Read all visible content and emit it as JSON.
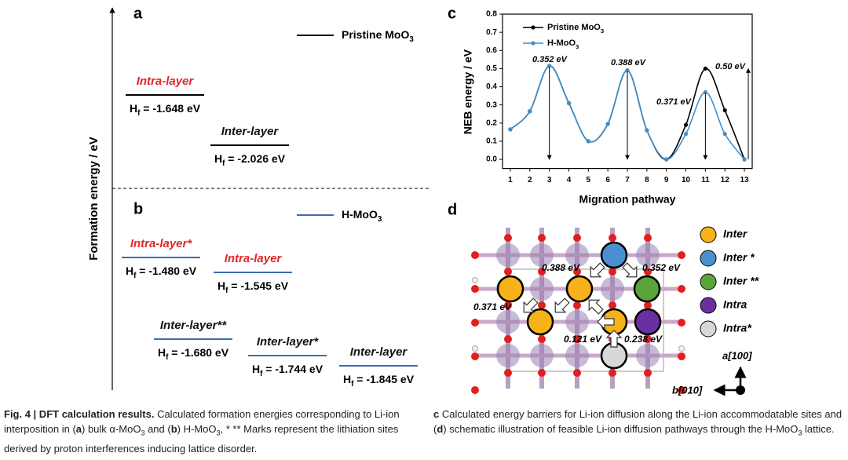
{
  "panel_a": {
    "label": "a",
    "axis_label": "Formation energy / eV",
    "legend": [
      "Pristine MoO",
      {
        "sub": "3"
      }
    ],
    "legend_color": "#000000",
    "levels": [
      {
        "name": "Intra-layer",
        "color": "#e0262a",
        "label": [
          "H",
          {
            "sub": "f"
          },
          " = -1.648 eV"
        ]
      },
      {
        "name": "Inter-layer",
        "color": "#111111",
        "label": [
          "H",
          {
            "sub": "f"
          },
          " = -2.026 eV"
        ]
      }
    ]
  },
  "panel_b": {
    "label": "b",
    "legend": [
      "H-MoO",
      {
        "sub": "3"
      }
    ],
    "legend_color": "#3b6db3",
    "levels": [
      {
        "name": "Intra-layer*",
        "color": "#e0262a",
        "label": [
          "H",
          {
            "sub": "f"
          },
          " = -1.480 eV"
        ]
      },
      {
        "name": "Intra-layer",
        "color": "#e0262a",
        "label": [
          "H",
          {
            "sub": "f"
          },
          " = -1.545 eV"
        ]
      },
      {
        "name": "Inter-layer**",
        "color": "#111111",
        "label": [
          "H",
          {
            "sub": "f"
          },
          " = -1.680 eV"
        ]
      },
      {
        "name": "Inter-layer*",
        "color": "#111111",
        "label": [
          "H",
          {
            "sub": "f"
          },
          " = -1.744 eV"
        ]
      },
      {
        "name": "Inter-layer",
        "color": "#111111",
        "label": [
          "H",
          {
            "sub": "f"
          },
          " = -1.845 eV"
        ]
      }
    ]
  },
  "chart_data": {
    "type": "line",
    "panel_label": "c",
    "x_label": "Migration pathway",
    "y_label": "NEB energy / eV",
    "x": [
      1,
      2,
      3,
      4,
      5,
      6,
      7,
      8,
      9,
      10,
      11,
      12,
      13
    ],
    "series": [
      {
        "name": [
          "Pristine MoO",
          {
            "sub": "3"
          }
        ],
        "color": "#000000",
        "values": [
          0.165,
          0.265,
          0.515,
          0.31,
          0.1,
          0.195,
          0.49,
          0.16,
          0.0,
          0.19,
          0.5,
          0.27,
          0.0
        ]
      },
      {
        "name": [
          "H-MoO",
          {
            "sub": "3"
          }
        ],
        "color": "#3f8fcc",
        "values": [
          0.165,
          0.265,
          0.515,
          0.31,
          0.1,
          0.195,
          0.49,
          0.16,
          0.0,
          0.14,
          0.37,
          0.14,
          0.0
        ]
      }
    ],
    "xlim": [
      0.6,
      13.4
    ],
    "xticks": [
      1,
      2,
      3,
      4,
      5,
      6,
      7,
      8,
      9,
      10,
      11,
      12,
      13
    ],
    "ylim": [
      -0.05,
      0.8
    ],
    "yticks": [
      {
        "value": 0,
        "label": "0.0"
      },
      0.1,
      0.2,
      0.3,
      0.4,
      0.5,
      0.6,
      0.7,
      0.8
    ],
    "annotations": [
      "0.352 eV",
      "0.388 eV",
      "0.371 eV",
      "0.50 eV"
    ]
  },
  "panel_d": {
    "label": "d",
    "legend": [
      "Inter",
      "Inter *",
      "Inter **",
      "Intra",
      "Intra*"
    ],
    "legend_colors": [
      "#f7b21a",
      "#4a90d0",
      "#5aa43c",
      "#6a2fa0",
      "#d8d8d8"
    ],
    "barriers": [
      "0.388 eV",
      "0.352 eV",
      "0.371 eV",
      "0.121 eV",
      "0.238 eV"
    ],
    "axes": [
      "a[100]",
      "b[010]"
    ]
  },
  "caption": {
    "left": [
      {
        "b": "Fig. 4 | DFT calculation results."
      },
      " Calculated formation energies corresponding to Li-ion interposition in (",
      {
        "b": "a"
      },
      ") bulk α-MoO",
      {
        "sub": "3"
      },
      " and (",
      {
        "b": "b"
      },
      ") H-MoO",
      {
        "sub": "3"
      },
      ", * ** Marks represent the lithiation sites derived by proton interferences inducing lattice disorder."
    ],
    "right": [
      {
        "b": "c"
      },
      " Calculated energy barriers for Li-ion diffusion along the Li-ion accommodatable sites and (",
      {
        "b": "d"
      },
      ") schematic illustration of feasible Li-ion diffusion pathways through the H-MoO",
      {
        "sub": "3"
      },
      " lattice."
    ]
  }
}
